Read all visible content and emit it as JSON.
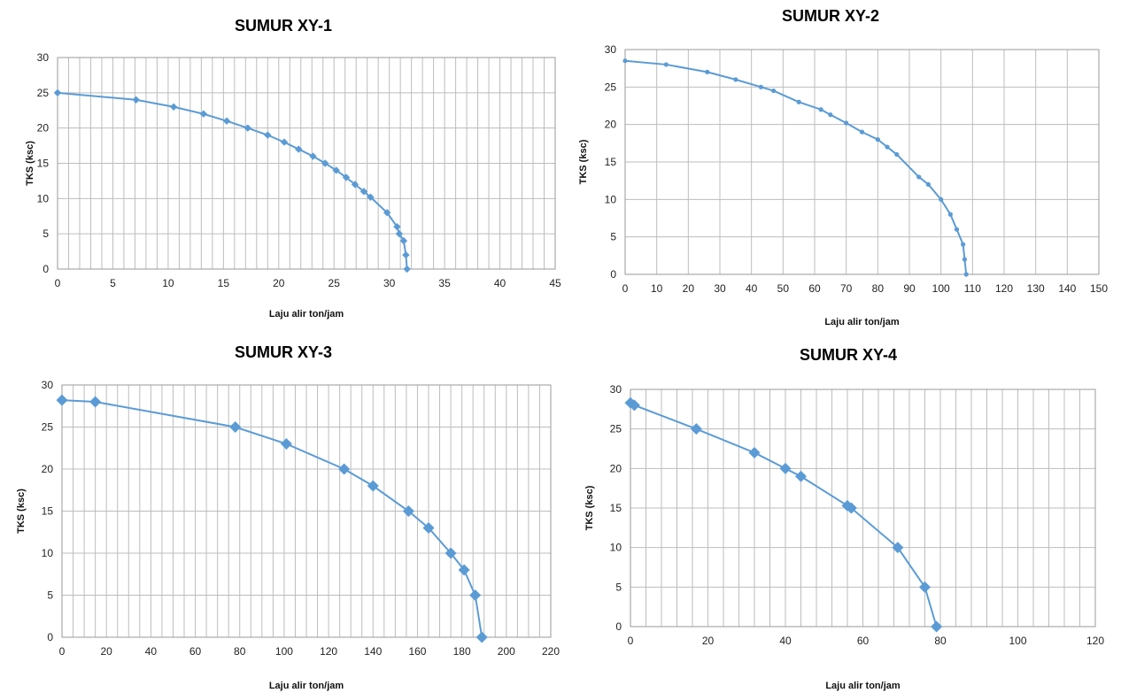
{
  "chart_data": [
    {
      "type": "line",
      "title": "SUMUR XY-1",
      "xlabel": "Laju alir ton/jam",
      "ylabel": "TKS (ksc)",
      "xlim": [
        0,
        45
      ],
      "ylim": [
        0,
        30
      ],
      "x_major": 5,
      "x_minor": 1,
      "y_major": 5,
      "grid": true,
      "series_color": "#5b9bd5",
      "marker": "diamond",
      "series": [
        {
          "x": [
            0,
            7.1,
            10.5,
            13.2,
            15.3,
            17.2,
            19,
            20.5,
            21.8,
            23.1,
            24.2,
            25.2,
            26.1,
            26.9,
            27.7,
            28.3,
            29.8,
            30.7,
            30.9,
            31.3,
            31.5,
            31.6
          ],
          "y": [
            25,
            24,
            23,
            22,
            21,
            20,
            19,
            18,
            17,
            16,
            15,
            14,
            13,
            12,
            11,
            10.2,
            8,
            6,
            5,
            4,
            2,
            0
          ]
        }
      ]
    },
    {
      "type": "line",
      "title": "SUMUR XY-2",
      "xlabel": "Laju alir ton/jam",
      "ylabel": "TKS (ksc)",
      "xlim": [
        0,
        150
      ],
      "ylim": [
        0,
        30
      ],
      "x_major": 10,
      "y_major": 5,
      "grid": true,
      "series_color": "#5b9bd5",
      "marker": "dot",
      "series": [
        {
          "x": [
            0,
            13,
            26,
            35,
            43,
            47,
            55,
            62,
            65,
            70,
            75,
            80,
            83,
            86,
            93,
            96,
            100,
            103,
            105,
            107,
            107.5,
            108
          ],
          "y": [
            28.5,
            28,
            27,
            26,
            25,
            24.5,
            23,
            22,
            21.3,
            20.2,
            19,
            18,
            17,
            16,
            13,
            12,
            10,
            8,
            6,
            4,
            2,
            0
          ]
        }
      ]
    },
    {
      "type": "line",
      "title": "SUMUR XY-3",
      "xlabel": "Laju alir ton/jam",
      "ylabel": "TKS (ksc)",
      "xlim": [
        0,
        220
      ],
      "ylim": [
        0,
        30
      ],
      "x_major": 20,
      "x_minor": 5,
      "y_major": 5,
      "grid": true,
      "series_color": "#5b9bd5",
      "marker": "diamond-large",
      "series": [
        {
          "x": [
            0,
            15,
            78,
            101,
            127,
            140,
            156,
            165,
            175,
            181,
            186,
            189
          ],
          "y": [
            28.2,
            28,
            25,
            23,
            20,
            18,
            15,
            13,
            10,
            8,
            5,
            0
          ]
        }
      ]
    },
    {
      "type": "line",
      "title": "SUMUR XY-4",
      "xlabel": "Laju alir ton/jam",
      "ylabel": "TKS (ksc)",
      "xlim": [
        0,
        120
      ],
      "ylim": [
        0,
        30
      ],
      "x_major": 20,
      "x_minor": 4,
      "y_major": 5,
      "grid": true,
      "series_color": "#5b9bd5",
      "marker": "diamond-large",
      "series": [
        {
          "x": [
            0,
            1,
            17,
            32,
            40,
            44,
            56,
            57,
            69,
            76,
            79
          ],
          "y": [
            28.3,
            28,
            25,
            22,
            20,
            19,
            15.3,
            15,
            10,
            5,
            0
          ]
        }
      ]
    }
  ]
}
